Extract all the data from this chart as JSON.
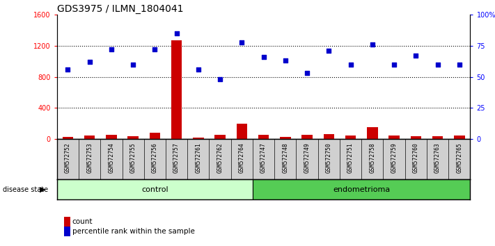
{
  "title": "GDS3975 / ILMN_1804041",
  "samples": [
    "GSM572752",
    "GSM572753",
    "GSM572754",
    "GSM572755",
    "GSM572756",
    "GSM572757",
    "GSM572761",
    "GSM572762",
    "GSM572764",
    "GSM572747",
    "GSM572748",
    "GSM572749",
    "GSM572750",
    "GSM572751",
    "GSM572758",
    "GSM572759",
    "GSM572760",
    "GSM572763",
    "GSM572765"
  ],
  "counts": [
    25,
    45,
    55,
    38,
    85,
    1270,
    15,
    50,
    195,
    55,
    25,
    55,
    65,
    48,
    155,
    45,
    40,
    35,
    45
  ],
  "percentiles": [
    56,
    62,
    72,
    60,
    72,
    85,
    56,
    48,
    78,
    66,
    63,
    53,
    71,
    60,
    76,
    60,
    67,
    60,
    60
  ],
  "control_count": 9,
  "endometrioma_count": 10,
  "control_label": "control",
  "endometrioma_label": "endometrioma",
  "disease_state_label": "disease state",
  "count_label": "count",
  "percentile_label": "percentile rank within the sample",
  "ylim_left": [
    0,
    1600
  ],
  "ylim_right": [
    0,
    100
  ],
  "yticks_left": [
    0,
    400,
    800,
    1200,
    1600
  ],
  "yticks_right": [
    0,
    25,
    50,
    75,
    100
  ],
  "bar_color": "#cc0000",
  "scatter_color": "#0000cc",
  "control_bg": "#ccffcc",
  "endometrioma_bg": "#55cc55",
  "sample_bg": "#d0d0d0",
  "grid_color": "#000000",
  "title_fontsize": 10,
  "tick_fontsize": 7,
  "label_fontsize": 8
}
